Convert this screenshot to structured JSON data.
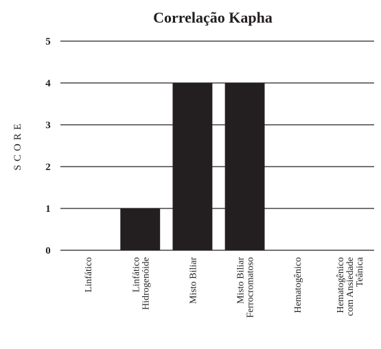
{
  "chart_data": {
    "type": "bar",
    "title": "Correlação Kapha",
    "y_label": "SCORE",
    "categories": [
      "Linfático",
      "Linfático\nHidrogenóide",
      "Misto Biliar",
      "Misto Biliar\nFerrocromatoso",
      "Hematogênico",
      "Hematogênico\ncom Ansiedade\nTeânica"
    ],
    "values": [
      0,
      1,
      4,
      4,
      0,
      0
    ],
    "color": "#231f20",
    "ylim": [
      0,
      5
    ],
    "yticks": [
      0,
      1,
      2,
      3,
      4,
      5
    ],
    "grid": true
  }
}
